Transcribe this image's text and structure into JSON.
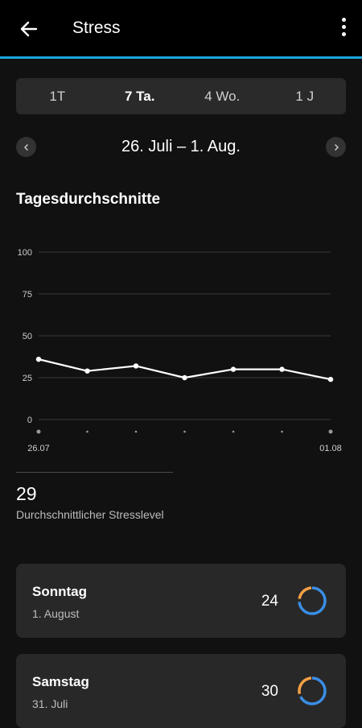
{
  "header": {
    "title": "Stress"
  },
  "tabs": [
    {
      "label": "1T"
    },
    {
      "label": "7 Ta."
    },
    {
      "label": "4 Wo."
    },
    {
      "label": "1 J"
    }
  ],
  "active_tab": "7 Ta.",
  "date_range": "26. Juli – 1. Aug.",
  "section_title": "Tagesdurchschnitte",
  "average": {
    "value": "29",
    "label": "Durchschnittlicher Stresslevel"
  },
  "days": [
    {
      "name": "Sonntag",
      "date": "1. August",
      "value": "24",
      "rest_fraction": 0.76
    },
    {
      "name": "Samstag",
      "date": "31. Juli",
      "value": "30",
      "rest_fraction": 0.7
    }
  ],
  "colors": {
    "accent": "#19a7e0",
    "stress": "#f5a045",
    "rest": "#3a8ee6",
    "line": "#ffffff"
  },
  "chart_data": {
    "type": "line",
    "x": [
      "26.07",
      "27.07",
      "28.07",
      "29.07",
      "30.07",
      "31.07",
      "01.08"
    ],
    "x_tick_labels": [
      "26.07",
      "",
      "",
      "",
      "",
      "",
      "01.08"
    ],
    "series": [
      {
        "values": [
          36,
          29,
          32,
          25,
          30,
          30,
          24
        ]
      }
    ],
    "y_ticks": [
      0,
      25,
      50,
      75,
      100
    ],
    "ylim": [
      0,
      100
    ],
    "grid": true,
    "title": "",
    "xlabel": "",
    "ylabel": ""
  }
}
